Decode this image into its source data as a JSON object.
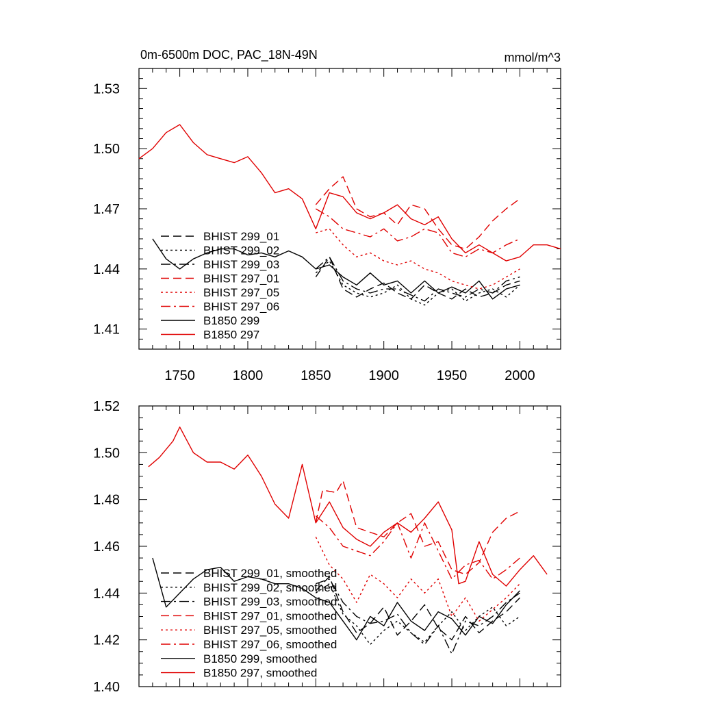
{
  "chart_data": [
    {
      "type": "line",
      "panel": "top",
      "title": "0m-6500m DOC, PAC_18N-49N",
      "units": "mmol/m^3",
      "xlim": [
        1720,
        2030
      ],
      "ylim": [
        1.4,
        1.54
      ],
      "xticks": [
        1750,
        1800,
        1850,
        1900,
        1950,
        2000
      ],
      "yticks": [
        1.41,
        1.44,
        1.47,
        1.5,
        1.53
      ],
      "yticklabels": [
        "1.41",
        "1.44",
        "1.47",
        "1.50",
        "1.53"
      ],
      "legend": [
        "BHIST 299_01",
        "BHIST 299_02",
        "BHIST 299_03",
        "BHIST 297_01",
        "BHIST 297_05",
        "BHIST 297_06",
        "B1850 299",
        "B1850 297"
      ],
      "series": [
        {
          "name": "B1850 297",
          "color": "#e00000",
          "dash": "solid",
          "x": [
            1720,
            1730,
            1740,
            1750,
            1760,
            1770,
            1780,
            1790,
            1800,
            1810,
            1820,
            1830,
            1840,
            1850,
            1860,
            1870,
            1880,
            1890,
            1900,
            1910,
            1920,
            1930,
            1940,
            1950,
            1960,
            1970,
            1980,
            1990,
            2000,
            2010,
            2020,
            2030
          ],
          "y": [
            1.495,
            1.5,
            1.508,
            1.512,
            1.503,
            1.497,
            1.495,
            1.493,
            1.496,
            1.488,
            1.478,
            1.48,
            1.475,
            1.46,
            1.478,
            1.476,
            1.468,
            1.465,
            1.468,
            1.472,
            1.465,
            1.462,
            1.466,
            1.455,
            1.448,
            1.452,
            1.448,
            1.444,
            1.446,
            1.452,
            1.452,
            1.45
          ]
        },
        {
          "name": "B1850 299",
          "color": "#000000",
          "dash": "solid",
          "x": [
            1730,
            1740,
            1750,
            1760,
            1770,
            1780,
            1790,
            1800,
            1810,
            1820,
            1830,
            1840,
            1850,
            1860,
            1870,
            1880,
            1890,
            1900,
            1910,
            1920,
            1930,
            1940,
            1950,
            1960,
            1970,
            1980,
            1990,
            2000
          ],
          "y": [
            1.455,
            1.445,
            1.44,
            1.445,
            1.448,
            1.45,
            1.45,
            1.447,
            1.448,
            1.446,
            1.449,
            1.446,
            1.44,
            1.442,
            1.436,
            1.432,
            1.438,
            1.432,
            1.434,
            1.428,
            1.434,
            1.428,
            1.431,
            1.428,
            1.434,
            1.425,
            1.43,
            1.432
          ]
        },
        {
          "name": "BHIST 299_01",
          "color": "#000000",
          "dash": "12,6",
          "x": [
            1850,
            1860,
            1870,
            1880,
            1890,
            1900,
            1910,
            1920,
            1930,
            1940,
            1950,
            1960,
            1970,
            1980,
            1990,
            2000
          ],
          "y": [
            1.436,
            1.446,
            1.43,
            1.426,
            1.43,
            1.433,
            1.428,
            1.425,
            1.432,
            1.428,
            1.425,
            1.43,
            1.426,
            1.428,
            1.432,
            1.434
          ]
        },
        {
          "name": "BHIST 299_02",
          "color": "#000000",
          "dash": "3,4",
          "x": [
            1850,
            1860,
            1870,
            1880,
            1890,
            1900,
            1910,
            1920,
            1930,
            1940,
            1950,
            1960,
            1970,
            1980,
            1990,
            2000
          ],
          "y": [
            1.438,
            1.444,
            1.432,
            1.428,
            1.426,
            1.428,
            1.432,
            1.425,
            1.422,
            1.428,
            1.43,
            1.424,
            1.428,
            1.43,
            1.426,
            1.432
          ]
        },
        {
          "name": "BHIST 299_03",
          "color": "#000000",
          "dash": "14,5,3,5",
          "x": [
            1850,
            1860,
            1870,
            1880,
            1890,
            1900,
            1910,
            1920,
            1930,
            1940,
            1950,
            1960,
            1970,
            1980,
            1990,
            2000
          ],
          "y": [
            1.44,
            1.446,
            1.434,
            1.43,
            1.428,
            1.43,
            1.43,
            1.427,
            1.424,
            1.43,
            1.428,
            1.426,
            1.43,
            1.428,
            1.434,
            1.436
          ]
        },
        {
          "name": "BHIST 297_01",
          "color": "#e00000",
          "dash": "12,6",
          "x": [
            1850,
            1860,
            1870,
            1880,
            1890,
            1900,
            1910,
            1920,
            1930,
            1940,
            1950,
            1960,
            1970,
            1980,
            1990,
            2000
          ],
          "y": [
            1.472,
            1.48,
            1.486,
            1.47,
            1.466,
            1.468,
            1.462,
            1.472,
            1.47,
            1.46,
            1.452,
            1.45,
            1.456,
            1.464,
            1.47,
            1.475
          ]
        },
        {
          "name": "BHIST 297_05",
          "color": "#e00000",
          "dash": "3,4",
          "x": [
            1850,
            1860,
            1870,
            1880,
            1890,
            1900,
            1910,
            1920,
            1930,
            1940,
            1950,
            1960,
            1970,
            1980,
            1990,
            2000
          ],
          "y": [
            1.458,
            1.46,
            1.452,
            1.446,
            1.448,
            1.444,
            1.442,
            1.444,
            1.44,
            1.438,
            1.434,
            1.432,
            1.43,
            1.432,
            1.436,
            1.44
          ]
        },
        {
          "name": "BHIST 297_06",
          "color": "#e00000",
          "dash": "14,5,3,5",
          "x": [
            1850,
            1860,
            1870,
            1880,
            1890,
            1900,
            1910,
            1920,
            1930,
            1940,
            1950,
            1960,
            1970,
            1980,
            1990,
            2000
          ],
          "y": [
            1.47,
            1.466,
            1.46,
            1.458,
            1.456,
            1.46,
            1.454,
            1.456,
            1.46,
            1.458,
            1.448,
            1.446,
            1.45,
            1.448,
            1.452,
            1.455
          ]
        }
      ]
    },
    {
      "type": "line",
      "panel": "bottom",
      "title": "",
      "xlim": [
        1720,
        2030
      ],
      "ylim": [
        1.4,
        1.52
      ],
      "yticks": [
        1.4,
        1.42,
        1.44,
        1.46,
        1.48,
        1.5,
        1.52
      ],
      "yticklabels": [
        "1.40",
        "1.42",
        "1.44",
        "1.46",
        "1.48",
        "1.50",
        "1.52"
      ],
      "legend": [
        "BHIST 299_01, smoothed",
        "BHIST 299_02, smoothed",
        "BHIST 299_03, smoothed",
        "BHIST 297_01, smoothed",
        "BHIST 297_05, smoothed",
        "BHIST 297_06, smoothed",
        "B1850 299, smoothed",
        "B1850 297, smoothed"
      ],
      "series": [
        {
          "name": "B1850 297, smoothed",
          "color": "#e00000",
          "dash": "solid",
          "x": [
            1727,
            1735,
            1745,
            1750,
            1760,
            1770,
            1780,
            1790,
            1800,
            1810,
            1820,
            1830,
            1840,
            1850,
            1860,
            1870,
            1880,
            1890,
            1900,
            1910,
            1920,
            1930,
            1940,
            1950,
            1955,
            1960,
            1970,
            1980,
            1990,
            2000,
            2010,
            2020
          ],
          "y": [
            1.494,
            1.498,
            1.505,
            1.511,
            1.5,
            1.496,
            1.496,
            1.493,
            1.499,
            1.49,
            1.478,
            1.472,
            1.495,
            1.47,
            1.479,
            1.468,
            1.463,
            1.46,
            1.466,
            1.47,
            1.466,
            1.472,
            1.479,
            1.467,
            1.444,
            1.445,
            1.462,
            1.448,
            1.443,
            1.45,
            1.456,
            1.448
          ]
        },
        {
          "name": "B1850 299, smoothed",
          "color": "#000000",
          "dash": "solid",
          "x": [
            1730,
            1740,
            1750,
            1760,
            1770,
            1780,
            1790,
            1800,
            1810,
            1820,
            1830,
            1840,
            1850,
            1860,
            1870,
            1880,
            1890,
            1900,
            1910,
            1920,
            1930,
            1940,
            1950,
            1960,
            1970,
            1980,
            1990,
            2000
          ],
          "y": [
            1.455,
            1.434,
            1.44,
            1.446,
            1.45,
            1.451,
            1.445,
            1.447,
            1.446,
            1.444,
            1.444,
            1.442,
            1.438,
            1.436,
            1.428,
            1.42,
            1.43,
            1.426,
            1.436,
            1.428,
            1.424,
            1.432,
            1.429,
            1.422,
            1.43,
            1.427,
            1.435,
            1.441
          ]
        },
        {
          "name": "BHIST 299_01, smoothed",
          "color": "#000000",
          "dash": "12,6",
          "x": [
            1850,
            1860,
            1870,
            1880,
            1890,
            1900,
            1910,
            1920,
            1930,
            1940,
            1950,
            1960,
            1970,
            1980,
            1990,
            2000
          ],
          "y": [
            1.441,
            1.447,
            1.432,
            1.423,
            1.427,
            1.434,
            1.422,
            1.428,
            1.435,
            1.425,
            1.42,
            1.43,
            1.423,
            1.428,
            1.432,
            1.438
          ]
        },
        {
          "name": "BHIST 299_02, smoothed",
          "color": "#000000",
          "dash": "3,4",
          "x": [
            1850,
            1860,
            1870,
            1880,
            1890,
            1900,
            1910,
            1920,
            1930,
            1940,
            1950,
            1960,
            1970,
            1980,
            1990,
            2000
          ],
          "y": [
            1.44,
            1.444,
            1.431,
            1.426,
            1.418,
            1.424,
            1.428,
            1.423,
            1.419,
            1.426,
            1.432,
            1.424,
            1.43,
            1.434,
            1.426,
            1.43
          ]
        },
        {
          "name": "BHIST 299_03, smoothed",
          "color": "#000000",
          "dash": "14,5,3,5",
          "x": [
            1850,
            1860,
            1870,
            1880,
            1890,
            1900,
            1910,
            1920,
            1930,
            1940,
            1950,
            1960,
            1970,
            1980,
            1990,
            2000
          ],
          "y": [
            1.444,
            1.446,
            1.436,
            1.43,
            1.427,
            1.428,
            1.431,
            1.423,
            1.418,
            1.426,
            1.414,
            1.428,
            1.426,
            1.43,
            1.436,
            1.44
          ]
        },
        {
          "name": "BHIST 297_01, smoothed",
          "color": "#e00000",
          "dash": "12,6",
          "x": [
            1850,
            1855,
            1865,
            1870,
            1875,
            1880,
            1890,
            1900,
            1910,
            1920,
            1930,
            1940,
            1950,
            1960,
            1970,
            1980,
            1990,
            2000
          ],
          "y": [
            1.47,
            1.484,
            1.483,
            1.488,
            1.478,
            1.468,
            1.466,
            1.464,
            1.47,
            1.474,
            1.46,
            1.462,
            1.45,
            1.448,
            1.453,
            1.466,
            1.472,
            1.475
          ]
        },
        {
          "name": "BHIST 297_05, smoothed",
          "color": "#e00000",
          "dash": "3,4",
          "x": [
            1850,
            1860,
            1870,
            1880,
            1890,
            1900,
            1910,
            1920,
            1930,
            1940,
            1950,
            1960,
            1970,
            1980,
            1990,
            2000
          ],
          "y": [
            1.464,
            1.452,
            1.446,
            1.436,
            1.448,
            1.444,
            1.438,
            1.446,
            1.44,
            1.446,
            1.43,
            1.438,
            1.428,
            1.433,
            1.438,
            1.444
          ]
        },
        {
          "name": "BHIST 297_06, smoothed",
          "color": "#e00000",
          "dash": "14,5,3,5",
          "x": [
            1850,
            1860,
            1870,
            1880,
            1890,
            1900,
            1910,
            1920,
            1930,
            1940,
            1950,
            1960,
            1970,
            1980,
            1990,
            2000
          ],
          "y": [
            1.473,
            1.468,
            1.46,
            1.458,
            1.456,
            1.462,
            1.47,
            1.455,
            1.47,
            1.458,
            1.446,
            1.452,
            1.454,
            1.446,
            1.45,
            1.455
          ]
        }
      ]
    }
  ]
}
